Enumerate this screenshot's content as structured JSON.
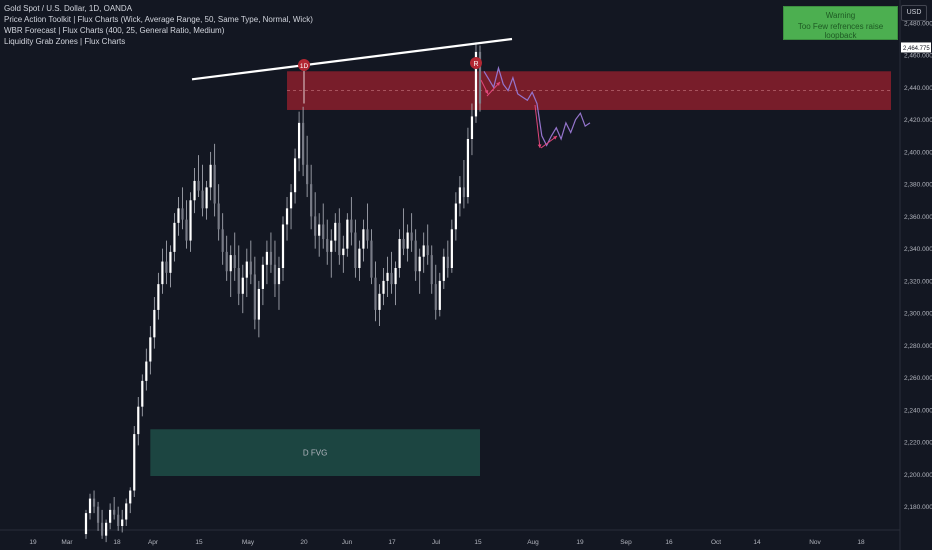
{
  "legend": {
    "symbol": "Gold Spot / U.S. Dollar, 1D, OANDA",
    "indicator_1": "Price Action Toolkit | Flux Charts (Wick, Average Range, 50, Same Type, Normal, Wick)",
    "indicator_2": "WBR Forecast | Flux Charts (400, 25, General Ratio, Medium)",
    "indicator_3": "Liquidity Grab Zones | Flux Charts"
  },
  "warning": {
    "title": "Warning",
    "message": "Too Few refrences raise loopback"
  },
  "currency_label": "USD",
  "current_price_label": "2,464.775",
  "colors": {
    "background": "#131722",
    "candle": "#ffffff",
    "wick": "#b2b5be",
    "grid_text": "#b2b5be",
    "resistance_zone": "#8b1e2b",
    "fvg_zone": "#1e4a45",
    "forecast": "#9575cd",
    "arrow": "#e0467a",
    "marker": "#b22833",
    "warning_bg": "#4caf50"
  },
  "chart_data": {
    "type": "candlestick",
    "x_ticks": [
      "19",
      "Mar",
      "18",
      "Apr",
      "15",
      "May",
      "20",
      "Jun",
      "17",
      "Jul",
      "15",
      "Aug",
      "19",
      "Sep",
      "16",
      "Oct",
      "14",
      "Nov",
      "18"
    ],
    "y_ticks": [
      "2,480.000",
      "2,460.000",
      "2,440.000",
      "2,420.000",
      "2,400.000",
      "2,380.000",
      "2,360.000",
      "2,340.000",
      "2,320.000",
      "2,300.000",
      "2,280.000",
      "2,260.000",
      "2,240.000",
      "2,220.000",
      "2,200.000",
      "2,180.000"
    ],
    "y_range": [
      2168,
      2488
    ],
    "candles": [
      [
        2163,
        2178,
        2160,
        2176
      ],
      [
        2176,
        2188,
        2172,
        2185
      ],
      [
        2185,
        2190,
        2176,
        2180
      ],
      [
        2180,
        2183,
        2165,
        2170
      ],
      [
        2170,
        2178,
        2160,
        2162
      ],
      [
        2162,
        2172,
        2158,
        2170
      ],
      [
        2170,
        2182,
        2166,
        2178
      ],
      [
        2178,
        2186,
        2172,
        2175
      ],
      [
        2175,
        2180,
        2165,
        2168
      ],
      [
        2168,
        2178,
        2164,
        2172
      ],
      [
        2172,
        2185,
        2168,
        2182
      ],
      [
        2182,
        2192,
        2176,
        2190
      ],
      [
        2190,
        2230,
        2186,
        2225
      ],
      [
        2225,
        2248,
        2218,
        2242
      ],
      [
        2242,
        2262,
        2236,
        2258
      ],
      [
        2258,
        2278,
        2252,
        2270
      ],
      [
        2270,
        2292,
        2262,
        2285
      ],
      [
        2285,
        2310,
        2278,
        2302
      ],
      [
        2302,
        2325,
        2296,
        2318
      ],
      [
        2318,
        2340,
        2312,
        2332
      ],
      [
        2332,
        2345,
        2318,
        2325
      ],
      [
        2325,
        2342,
        2316,
        2338
      ],
      [
        2338,
        2362,
        2332,
        2356
      ],
      [
        2356,
        2372,
        2348,
        2365
      ],
      [
        2365,
        2378,
        2352,
        2358
      ],
      [
        2358,
        2370,
        2340,
        2345
      ],
      [
        2345,
        2375,
        2338,
        2370
      ],
      [
        2370,
        2390,
        2362,
        2382
      ],
      [
        2382,
        2398,
        2372,
        2376
      ],
      [
        2376,
        2392,
        2360,
        2365
      ],
      [
        2365,
        2382,
        2358,
        2378
      ],
      [
        2378,
        2400,
        2370,
        2392
      ],
      [
        2392,
        2405,
        2360,
        2368
      ],
      [
        2368,
        2380,
        2345,
        2352
      ],
      [
        2352,
        2362,
        2330,
        2338
      ],
      [
        2338,
        2348,
        2320,
        2326
      ],
      [
        2326,
        2342,
        2310,
        2336
      ],
      [
        2336,
        2350,
        2320,
        2328
      ],
      [
        2328,
        2342,
        2305,
        2312
      ],
      [
        2312,
        2330,
        2300,
        2322
      ],
      [
        2322,
        2340,
        2310,
        2332
      ],
      [
        2332,
        2345,
        2318,
        2324
      ],
      [
        2324,
        2335,
        2290,
        2296
      ],
      [
        2296,
        2320,
        2285,
        2315
      ],
      [
        2315,
        2335,
        2305,
        2330
      ],
      [
        2330,
        2345,
        2318,
        2338
      ],
      [
        2338,
        2350,
        2325,
        2330
      ],
      [
        2330,
        2345,
        2310,
        2318
      ],
      [
        2318,
        2335,
        2302,
        2328
      ],
      [
        2328,
        2360,
        2320,
        2355
      ],
      [
        2355,
        2372,
        2345,
        2365
      ],
      [
        2365,
        2380,
        2352,
        2375
      ],
      [
        2375,
        2402,
        2368,
        2396
      ],
      [
        2396,
        2425,
        2388,
        2418
      ],
      [
        2418,
        2428,
        2385,
        2392
      ],
      [
        2392,
        2410,
        2372,
        2380
      ],
      [
        2380,
        2392,
        2352,
        2360
      ],
      [
        2360,
        2375,
        2340,
        2348
      ],
      [
        2348,
        2362,
        2335,
        2355
      ],
      [
        2355,
        2368,
        2340,
        2346
      ],
      [
        2346,
        2358,
        2330,
        2338
      ],
      [
        2338,
        2352,
        2322,
        2345
      ],
      [
        2345,
        2362,
        2338,
        2356
      ],
      [
        2356,
        2365,
        2330,
        2336
      ],
      [
        2336,
        2348,
        2325,
        2340
      ],
      [
        2340,
        2362,
        2335,
        2358
      ],
      [
        2358,
        2372,
        2342,
        2350
      ],
      [
        2350,
        2358,
        2322,
        2328
      ],
      [
        2328,
        2345,
        2320,
        2340
      ],
      [
        2340,
        2358,
        2332,
        2352
      ],
      [
        2352,
        2368,
        2340,
        2345
      ],
      [
        2345,
        2352,
        2318,
        2322
      ],
      [
        2322,
        2332,
        2295,
        2302
      ],
      [
        2302,
        2318,
        2292,
        2312
      ],
      [
        2312,
        2328,
        2305,
        2320
      ],
      [
        2320,
        2335,
        2310,
        2325
      ],
      [
        2325,
        2338,
        2312,
        2318
      ],
      [
        2318,
        2332,
        2305,
        2328
      ],
      [
        2328,
        2352,
        2322,
        2346
      ],
      [
        2346,
        2365,
        2336,
        2340
      ],
      [
        2340,
        2355,
        2332,
        2350
      ],
      [
        2350,
        2362,
        2338,
        2345
      ],
      [
        2345,
        2352,
        2320,
        2326
      ],
      [
        2326,
        2340,
        2312,
        2335
      ],
      [
        2335,
        2350,
        2325,
        2342
      ],
      [
        2342,
        2355,
        2330,
        2336
      ],
      [
        2336,
        2342,
        2312,
        2318
      ],
      [
        2318,
        2330,
        2296,
        2302
      ],
      [
        2302,
        2325,
        2298,
        2320
      ],
      [
        2320,
        2340,
        2315,
        2335
      ],
      [
        2335,
        2345,
        2322,
        2328
      ],
      [
        2328,
        2358,
        2325,
        2352
      ],
      [
        2352,
        2375,
        2345,
        2368
      ],
      [
        2368,
        2385,
        2360,
        2378
      ],
      [
        2378,
        2395,
        2365,
        2372
      ],
      [
        2372,
        2415,
        2368,
        2408
      ],
      [
        2408,
        2430,
        2398,
        2422
      ],
      [
        2422,
        2468,
        2418,
        2462
      ],
      [
        2462,
        2466,
        2425,
        2430
      ]
    ],
    "annotations": [
      {
        "label": "1D",
        "type": "marker"
      },
      {
        "label": "R",
        "type": "marker"
      },
      {
        "label": "D FVG",
        "type": "zone"
      }
    ],
    "resistance_zone": [
      2426,
      2450
    ],
    "fvg_zone": [
      2199,
      2228
    ],
    "trendline": [
      2445,
      2470
    ],
    "forecast": [
      2450,
      2445,
      2440,
      2452,
      2442,
      2438,
      2446,
      2436,
      2434,
      2432,
      2437,
      2430,
      2410,
      2404,
      2410,
      2415,
      2408,
      2418,
      2412,
      2420,
      2424,
      2416,
      2418
    ]
  }
}
